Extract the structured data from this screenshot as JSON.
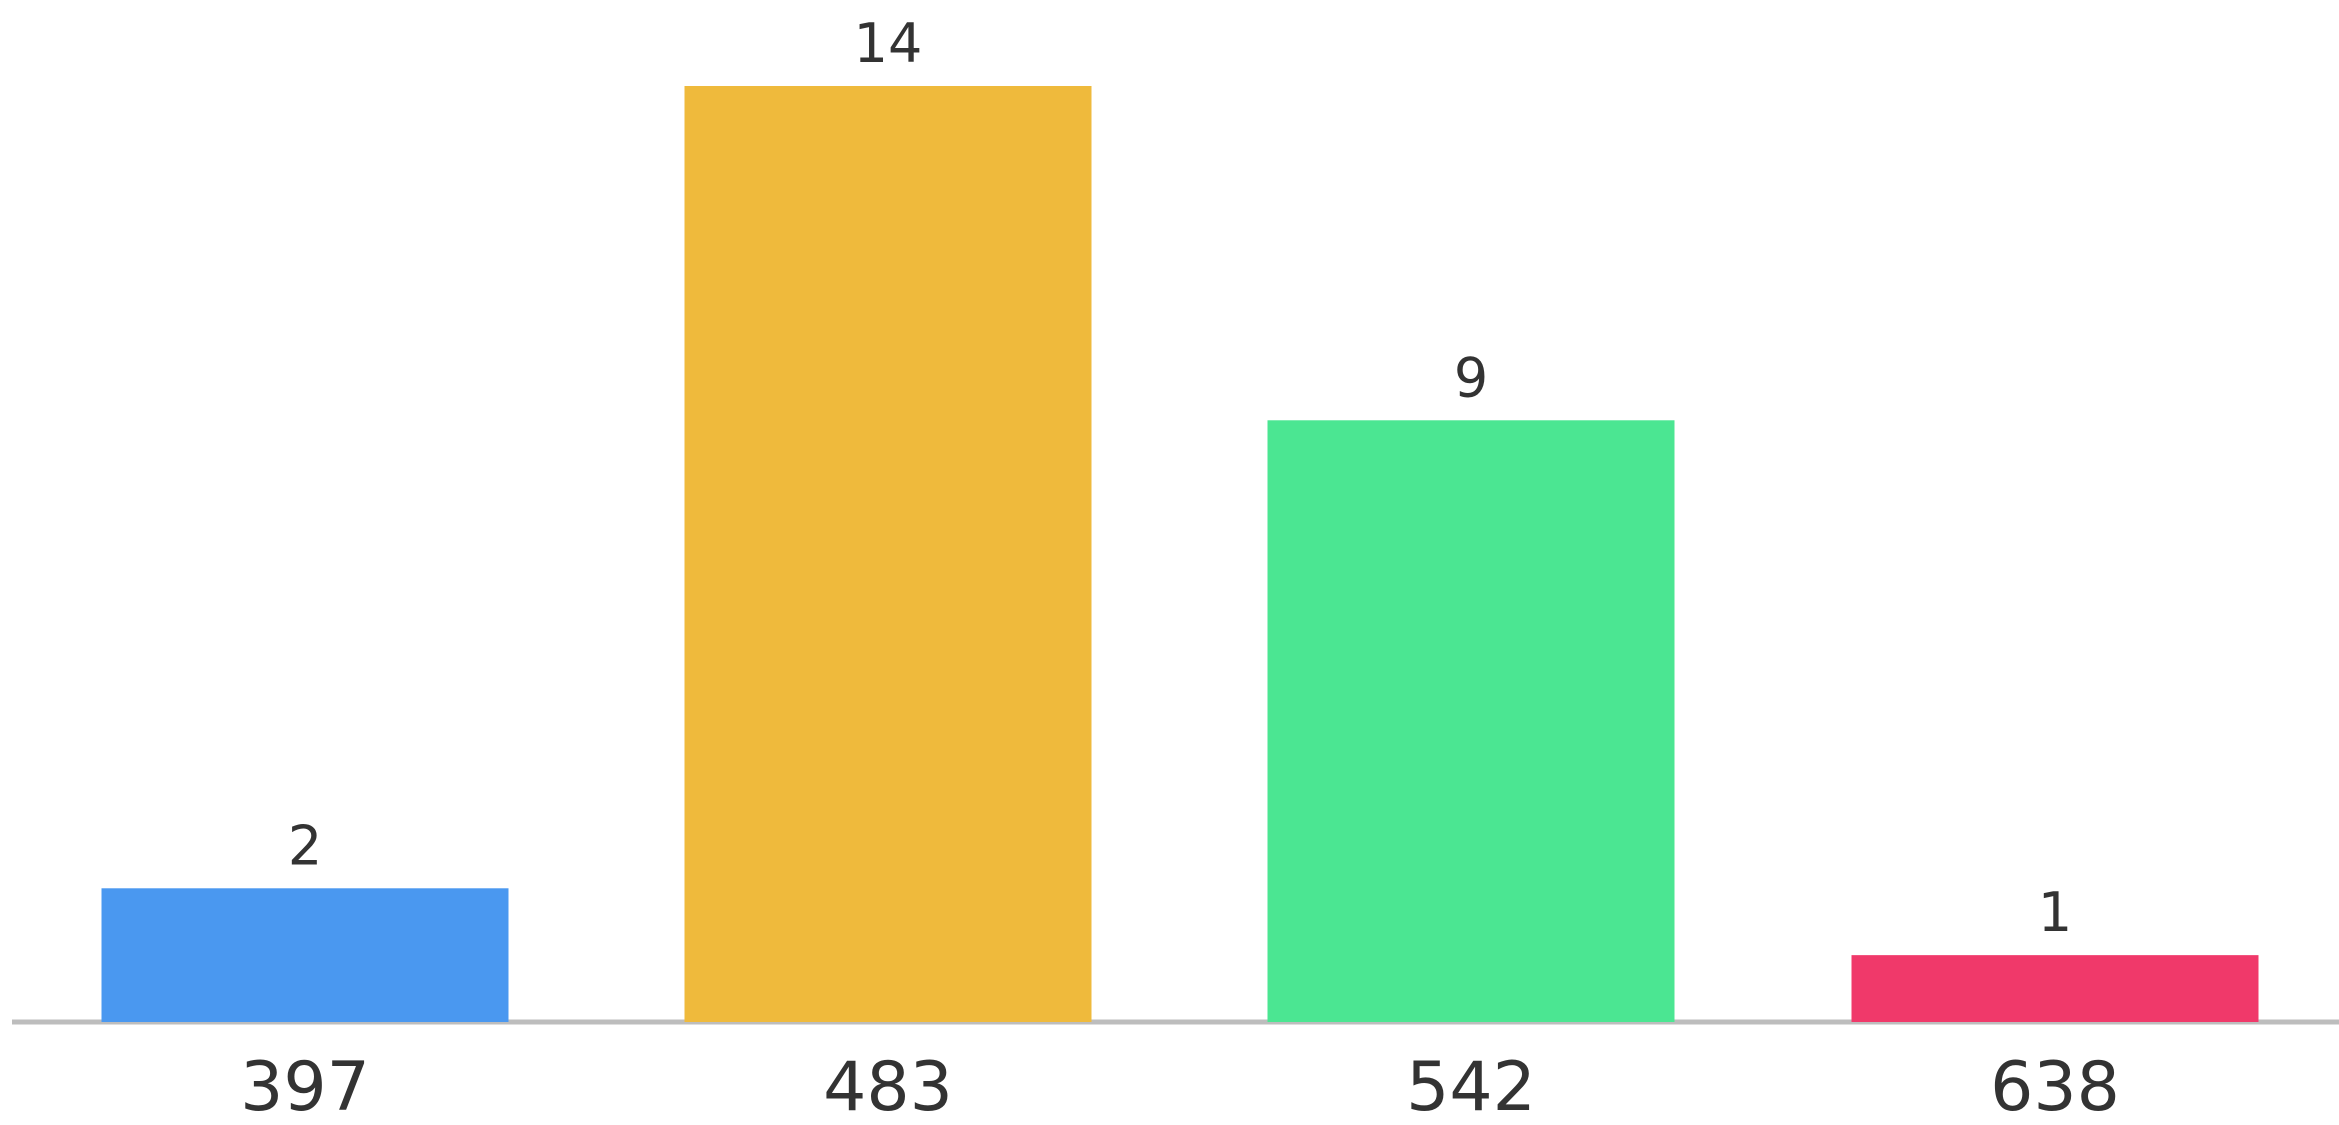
{
  "chart_data": {
    "type": "bar",
    "categories": [
      "397",
      "483",
      "542",
      "638"
    ],
    "values": [
      2,
      14,
      9,
      1
    ],
    "colors": [
      "#4A98F0",
      "#EFBA3C",
      "#4BE692",
      "#F0396A"
    ],
    "axis_color": "#BDBDBD",
    "ylim": [
      0,
      14
    ],
    "grid": false,
    "legend": "none",
    "data_labels": true
  }
}
